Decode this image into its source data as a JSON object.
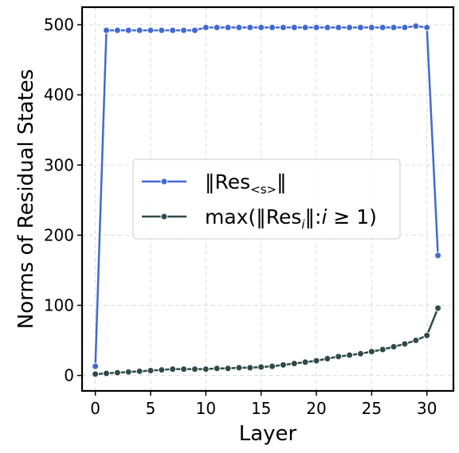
{
  "chart_data": {
    "type": "line",
    "xlabel": "Layer",
    "ylabel": "Norms of Residual States",
    "xlim": [
      -1.2,
      32.4
    ],
    "ylim": [
      -22,
      525
    ],
    "xticks": [
      0,
      5,
      10,
      15,
      20,
      25,
      30
    ],
    "yticks": [
      0,
      100,
      200,
      300,
      400,
      500
    ],
    "grid": true,
    "legend_position": "center",
    "x": [
      0,
      1,
      2,
      3,
      4,
      5,
      6,
      7,
      8,
      9,
      10,
      11,
      12,
      13,
      14,
      15,
      16,
      17,
      18,
      19,
      20,
      21,
      22,
      23,
      24,
      25,
      26,
      27,
      28,
      29,
      30,
      31
    ],
    "series": [
      {
        "name": "‖Res<s>‖",
        "legend_main": "‖Res",
        "legend_sub": "<s>",
        "legend_tail": "‖",
        "color": "#4169d1",
        "values": [
          13,
          492,
          492,
          492,
          492,
          492,
          492,
          492,
          492,
          492,
          496,
          496,
          496,
          496,
          496,
          496,
          496,
          496,
          496,
          496,
          496,
          496,
          496,
          496,
          496,
          496,
          496,
          496,
          496,
          498,
          496,
          171
        ]
      },
      {
        "name": "max(‖Resi‖:i ≥ 1)",
        "legend_main": "max(‖Res",
        "legend_sub": "i",
        "legend_tail": "‖:",
        "legend_italic": "i",
        "legend_end": " ≥ 1)",
        "color": "#2e4a4a",
        "values": [
          2,
          3,
          4,
          5,
          6,
          7,
          8,
          9,
          9,
          9,
          9,
          10,
          10,
          11,
          11,
          12,
          13,
          15,
          17,
          19,
          21,
          24,
          27,
          29,
          31,
          34,
          37,
          41,
          45,
          50,
          57,
          96
        ]
      }
    ]
  }
}
